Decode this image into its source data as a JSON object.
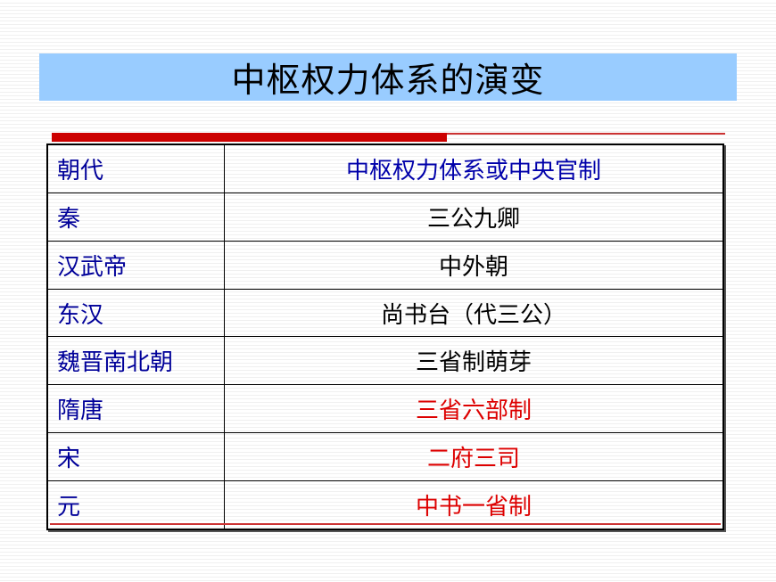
{
  "title": "中枢权力体系的演变",
  "colors": {
    "title_bg": "#99ccff",
    "dynasty_text": "#000099",
    "highlight": "#dd0000",
    "accent_rule": "#cc0000"
  },
  "table": {
    "headers": [
      "朝代",
      "中枢权力体系或中央官制"
    ],
    "rows": [
      {
        "dynasty": "秦",
        "system": "三公九卿",
        "highlight": false
      },
      {
        "dynasty": "汉武帝",
        "system": "中外朝",
        "highlight": false
      },
      {
        "dynasty": "东汉",
        "system": "尚书台（代三公）",
        "highlight": false
      },
      {
        "dynasty": "魏晋南北朝",
        "system": "三省制萌芽",
        "highlight": false
      },
      {
        "dynasty": "隋唐",
        "system": "三省六部制",
        "highlight": true
      },
      {
        "dynasty": "宋",
        "system": "二府三司",
        "highlight": true
      },
      {
        "dynasty": "元",
        "system": "中书一省制",
        "highlight": true
      }
    ]
  }
}
